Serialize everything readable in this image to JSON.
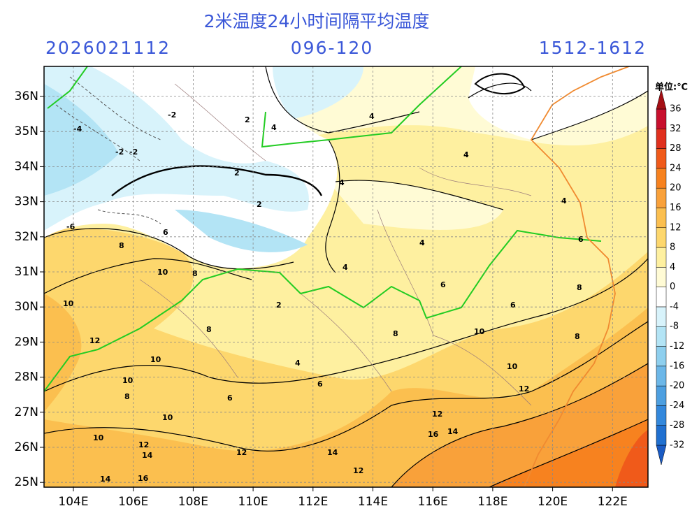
{
  "header": {
    "title": "2米温度24小时间隔平均温度",
    "init_time": "2026021112",
    "forecast_hours": "096-120",
    "valid_range": "1512-1612"
  },
  "axes": {
    "latitude_labels": [
      "36N",
      "35N",
      "34N",
      "33N",
      "32N",
      "31N",
      "30N",
      "29N",
      "28N",
      "27N",
      "26N",
      "25N"
    ],
    "longitude_labels": [
      "104E",
      "106E",
      "108E",
      "110E",
      "112E",
      "114E",
      "116E",
      "118E",
      "120E",
      "122E"
    ]
  },
  "colorbar": {
    "unit": "单位:℃",
    "levels": [
      -32,
      -28,
      -24,
      -20,
      -16,
      -12,
      -8,
      -4,
      0,
      4,
      8,
      12,
      16,
      20,
      24,
      28,
      32,
      36
    ],
    "colors": [
      "#1a5bc4",
      "#2070d0",
      "#3388dc",
      "#4d9fe0",
      "#6cb7e8",
      "#8ecfee",
      "#b3e4f5",
      "#d8f3fb",
      "#ffffff",
      "#fffbd5",
      "#fef0a0",
      "#fdd76d",
      "#fbbf4f",
      "#f9a13a",
      "#f7821f",
      "#f05a1a",
      "#e0301e",
      "#c8102e",
      "#a50f15"
    ]
  },
  "map": {
    "contour_labels": [
      "-2",
      "-4",
      "-2",
      "-2",
      "2",
      "4",
      "4",
      "2",
      "2",
      "4",
      "-6",
      "8",
      "6",
      "10",
      "8",
      "4",
      "4",
      "6",
      "4",
      "4",
      "8",
      "10",
      "12",
      "10",
      "8",
      "10",
      "6",
      "8",
      "10",
      "12",
      "10",
      "14",
      "16",
      "14",
      "12",
      "14",
      "12",
      "16",
      "14",
      "12",
      "12",
      "10",
      "8",
      "6",
      "8",
      "10",
      "6",
      "2",
      "4",
      "6"
    ]
  }
}
